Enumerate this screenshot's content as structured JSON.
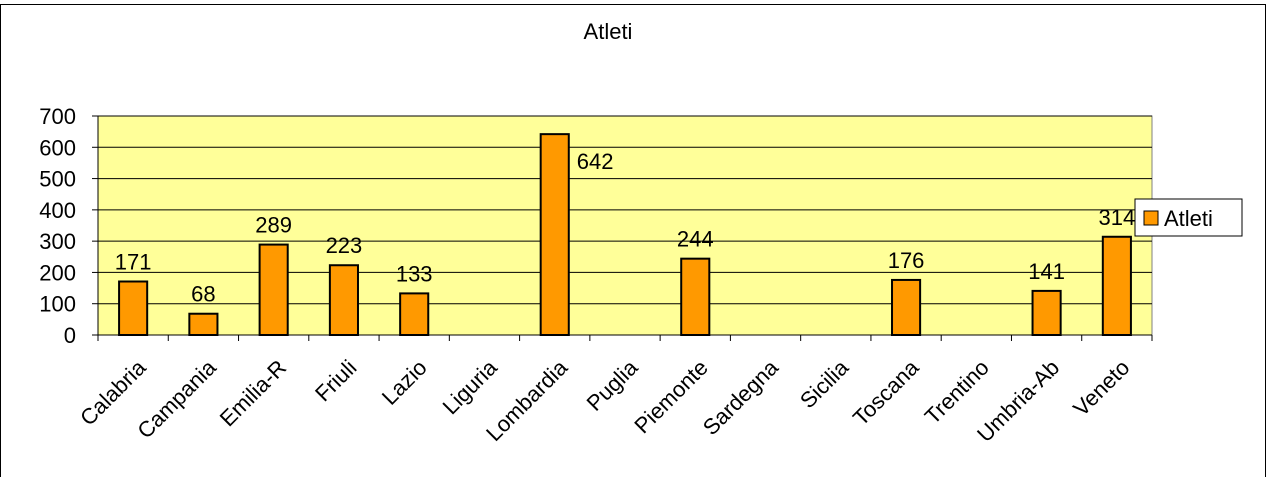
{
  "chart_data": {
    "type": "bar",
    "title": "Atleti",
    "categories": [
      "Calabria",
      "Campania",
      "Emilia-R",
      "Friuli",
      "Lazio",
      "Liguria",
      "Lombardia",
      "Puglia",
      "Piemonte",
      "Sardegna",
      "Sicilia",
      "Toscana",
      "Trentino",
      "Umbria-Ab",
      "Veneto"
    ],
    "series": [
      {
        "name": "Atleti",
        "values": [
          171,
          68,
          289,
          223,
          133,
          null,
          642,
          null,
          244,
          null,
          null,
          176,
          null,
          141,
          314
        ],
        "data_labels": [
          "171",
          "68",
          "289",
          "223",
          "133",
          "",
          "642",
          "",
          "244",
          "",
          "",
          "176",
          "",
          "141",
          "314"
        ]
      }
    ],
    "yticks": [
      "0",
      "100",
      "200",
      "300",
      "400",
      "500",
      "600",
      "700"
    ],
    "ylim": [
      0,
      700
    ],
    "xlabel": "",
    "ylabel": "",
    "grid": true,
    "legend_position": "right",
    "colors": {
      "bar_fill": "#FF9900",
      "bar_stroke": "#000000",
      "plot_background": "#FFFF99",
      "gridline": "#000000",
      "frame": "#000000"
    }
  }
}
